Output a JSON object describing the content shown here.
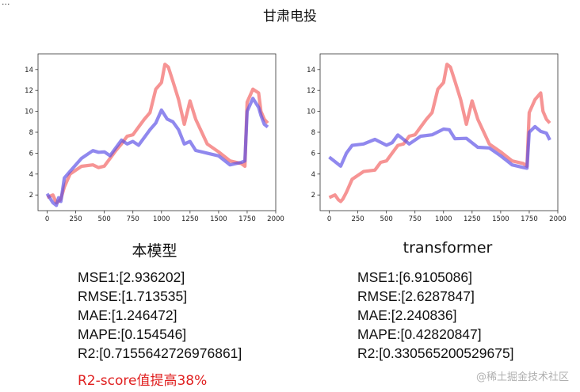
{
  "corner_text": "...",
  "title": "甘肃电投",
  "colors": {
    "red_series": "#f26262",
    "blue_series": "#5b50e6",
    "note": "#e02020"
  },
  "panels": [
    {
      "caption": "本模型",
      "metrics": [
        "MSE1:[2.936202]",
        "RMSE:[1.713535]",
        "MAE:[1.246472]",
        "MAPE:[0.154546]",
        "R2:[0.7155642726976861]"
      ]
    },
    {
      "caption": "transformer",
      "metrics": [
        "MSE1:[6.9105086]",
        "RMSE:[2.6287847]",
        "MAE:[2.240836]",
        "MAPE:[0.42820847]",
        "R2:[0.330565200529675]"
      ]
    }
  ],
  "note": "R2-score值提高38%",
  "watermark": "@稀土掘金技术社区",
  "chart_data": [
    {
      "type": "line",
      "xlim": [
        -80,
        2000
      ],
      "ylim": [
        0.5,
        15.5
      ],
      "xticks": [
        0,
        250,
        500,
        750,
        1000,
        1250,
        1500,
        1750,
        2000
      ],
      "yticks": [
        2,
        4,
        6,
        8,
        10,
        12,
        14
      ],
      "series": [
        {
          "color": "#f26262",
          "x": [
            0,
            50,
            80,
            100,
            120,
            150,
            200,
            300,
            400,
            450,
            500,
            550,
            600,
            650,
            700,
            750,
            800,
            850,
            900,
            950,
            1000,
            1030,
            1060,
            1100,
            1150,
            1200,
            1250,
            1300,
            1400,
            1500,
            1600,
            1700,
            1730,
            1750,
            1800,
            1850,
            1870,
            1900,
            1930
          ],
          "y": [
            2,
            2,
            1,
            1.5,
            1.5,
            3,
            4,
            4.5,
            5,
            4.5,
            5,
            5.5,
            6,
            7,
            7.5,
            8,
            8.5,
            9,
            10,
            12,
            13,
            14.5,
            14,
            13,
            11,
            9,
            11,
            9,
            7,
            6,
            5.5,
            5,
            4.5,
            11,
            12,
            12,
            10,
            9,
            9
          ]
        },
        {
          "color": "#5b50e6",
          "x": [
            0,
            50,
            80,
            100,
            120,
            150,
            200,
            300,
            400,
            450,
            500,
            550,
            600,
            650,
            700,
            750,
            800,
            850,
            900,
            950,
            1000,
            1050,
            1100,
            1150,
            1200,
            1250,
            1300,
            1400,
            1500,
            1600,
            1700,
            1730,
            1750,
            1800,
            1850,
            1870,
            1900,
            1930
          ],
          "y": [
            2,
            1.5,
            1,
            1.5,
            1.5,
            3.5,
            4.5,
            5.5,
            6,
            6.2,
            6,
            6,
            6.5,
            7,
            7,
            7,
            7,
            7.5,
            8,
            9,
            10,
            9.5,
            9,
            8,
            7,
            7,
            6.5,
            6,
            5.5,
            5,
            5,
            5.5,
            10,
            11,
            10.5,
            9.5,
            9,
            8.5
          ]
        }
      ]
    },
    {
      "type": "line",
      "xlim": [
        -80,
        2000
      ],
      "ylim": [
        0.5,
        15.5
      ],
      "xticks": [
        0,
        250,
        500,
        750,
        1000,
        1250,
        1500,
        1750,
        2000
      ],
      "yticks": [
        2,
        4,
        6,
        8,
        10,
        12,
        14
      ],
      "series": [
        {
          "color": "#f26262",
          "x": [
            0,
            50,
            80,
            100,
            120,
            150,
            200,
            300,
            400,
            450,
            500,
            550,
            600,
            650,
            700,
            750,
            800,
            850,
            900,
            950,
            1000,
            1030,
            1060,
            1100,
            1150,
            1200,
            1250,
            1300,
            1400,
            1500,
            1600,
            1700,
            1730,
            1750,
            1800,
            1850,
            1870,
            1900,
            1930
          ],
          "y": [
            2,
            2,
            1.3,
            1.5,
            1.5,
            2.5,
            3.5,
            4,
            4.5,
            5,
            5.5,
            6,
            6.5,
            7,
            7.5,
            8,
            8.5,
            9,
            10,
            12,
            13,
            14.5,
            14,
            13,
            11,
            9,
            11,
            9,
            7,
            6,
            5.5,
            5,
            4.5,
            10,
            11,
            12,
            10,
            9,
            9
          ]
        },
        {
          "color": "#5b50e6",
          "x": [
            0,
            100,
            150,
            200,
            300,
            400,
            500,
            550,
            600,
            700,
            800,
            900,
            1000,
            1050,
            1100,
            1200,
            1300,
            1400,
            1500,
            1600,
            1700,
            1730,
            1750,
            1800,
            1850,
            1900,
            1930
          ],
          "y": [
            5.5,
            5,
            6,
            6.5,
            7,
            7.2,
            7,
            7,
            7.5,
            7,
            7.5,
            8,
            8.3,
            8,
            7.5,
            7.3,
            6.8,
            6.5,
            5.5,
            5,
            4.5,
            4.8,
            8,
            8.3,
            8.2,
            7.8,
            7.5
          ]
        }
      ]
    }
  ]
}
